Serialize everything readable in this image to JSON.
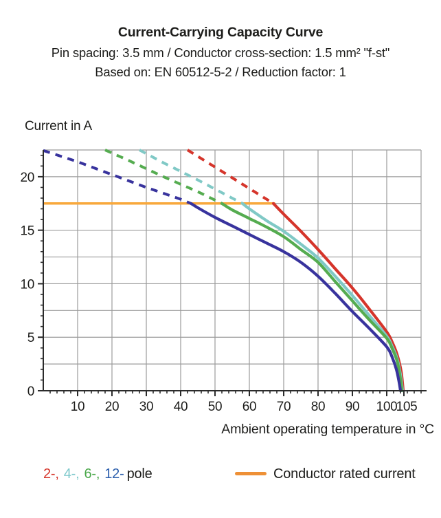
{
  "header": {
    "title": "Current-Carrying Capacity Curve",
    "subtitle_spacing": "Pin spacing: 3.5 mm / Conductor cross-section: 1.5 mm² \"f-st\"",
    "subtitle_standard": "Based on: EN 60512-5-2 / Reduction factor: 1"
  },
  "chart_data": {
    "type": "line",
    "title": "Current-Carrying Capacity Curve",
    "subtitle": "Pin spacing: 3.5 mm / Conductor cross-section: 1.5 mm² \"f-st\" / Based on: EN 60512-5-2 / Reduction factor: 1",
    "ylabel": "Current in A",
    "xlabel": "Ambient operating temperature in °C",
    "xlim": [
      0,
      110
    ],
    "ylim": [
      0,
      22.5
    ],
    "x_major_ticks": [
      10,
      20,
      30,
      40,
      50,
      60,
      70,
      80,
      90,
      100,
      105
    ],
    "x_minor_step": 2,
    "y_major_ticks": [
      0,
      5,
      10,
      15,
      20
    ],
    "y_minor_step": 1,
    "x_gridlines": [
      10,
      20,
      30,
      40,
      50,
      60,
      70,
      80,
      90,
      100,
      110
    ],
    "y_gridlines": [
      2.5,
      5,
      7.5,
      10,
      12.5,
      15,
      17.5,
      20,
      22.5
    ],
    "grid_on": true,
    "grid_color": "#9b9b9b",
    "axis_color": "#2b2b2b",
    "text_color": "#1d1d1b",
    "rated_current": {
      "label": "Conductor rated current",
      "value": 17.5,
      "x_start": 0,
      "x_end": 67.5,
      "color": "#f8a83c"
    },
    "series": [
      {
        "name": "2-pole",
        "color": "#d5352b",
        "dashed_above_rated": [
          [
            42,
            22.5
          ],
          [
            50,
            20.9
          ],
          [
            60,
            18.9
          ],
          [
            67,
            17.5
          ]
        ],
        "solid": [
          [
            67,
            17.5
          ],
          [
            70,
            16.5
          ],
          [
            75,
            14.9
          ],
          [
            80,
            13.2
          ],
          [
            85,
            11.4
          ],
          [
            90,
            9.6
          ],
          [
            95,
            7.6
          ],
          [
            100,
            5.5
          ],
          [
            101.5,
            4.6
          ],
          [
            103,
            3.4
          ],
          [
            104.2,
            1.8
          ],
          [
            104.8,
            0
          ]
        ]
      },
      {
        "name": "4-pole",
        "color": "#80c9c6",
        "dashed_above_rated": [
          [
            28,
            22.5
          ],
          [
            35,
            21.3
          ],
          [
            45,
            19.7
          ],
          [
            55,
            18.0
          ],
          [
            58,
            17.5
          ]
        ],
        "solid": [
          [
            58,
            17.5
          ],
          [
            60,
            17.0
          ],
          [
            65,
            15.9
          ],
          [
            70,
            14.9
          ],
          [
            75,
            13.7
          ],
          [
            80,
            12.4
          ],
          [
            85,
            10.7
          ],
          [
            90,
            8.9
          ],
          [
            95,
            7.0
          ],
          [
            100,
            5.1
          ],
          [
            101.5,
            4.2
          ],
          [
            103,
            3.0
          ],
          [
            104,
            1.5
          ],
          [
            104.6,
            0
          ]
        ]
      },
      {
        "name": "6-pole",
        "color": "#55ac50",
        "dashed_above_rated": [
          [
            18,
            22.5
          ],
          [
            25,
            21.5
          ],
          [
            35,
            20.0
          ],
          [
            45,
            18.6
          ],
          [
            52,
            17.5
          ]
        ],
        "solid": [
          [
            52,
            17.5
          ],
          [
            55,
            16.9
          ],
          [
            60,
            16.1
          ],
          [
            65,
            15.3
          ],
          [
            70,
            14.4
          ],
          [
            75,
            13.2
          ],
          [
            80,
            12.0
          ],
          [
            85,
            10.2
          ],
          [
            90,
            8.4
          ],
          [
            95,
            6.6
          ],
          [
            100,
            4.9
          ],
          [
            101.5,
            4.0
          ],
          [
            103,
            2.8
          ],
          [
            103.9,
            1.3
          ],
          [
            104.4,
            0
          ]
        ]
      },
      {
        "name": "12-pole",
        "color": "#38339d",
        "dashed_above_rated": [
          [
            0,
            22.45
          ],
          [
            10,
            21.4
          ],
          [
            20,
            20.2
          ],
          [
            30,
            19.0
          ],
          [
            40,
            17.9
          ],
          [
            43,
            17.5
          ]
        ],
        "solid": [
          [
            43,
            17.5
          ],
          [
            45,
            17.1
          ],
          [
            50,
            16.2
          ],
          [
            55,
            15.4
          ],
          [
            60,
            14.6
          ],
          [
            65,
            13.8
          ],
          [
            70,
            13.0
          ],
          [
            75,
            12.0
          ],
          [
            80,
            10.7
          ],
          [
            85,
            9.1
          ],
          [
            90,
            7.4
          ],
          [
            95,
            5.8
          ],
          [
            100,
            4.1
          ],
          [
            101.5,
            3.2
          ],
          [
            102.8,
            2.0
          ],
          [
            103.6,
            0.8
          ],
          [
            104,
            0
          ]
        ]
      }
    ],
    "legend_position": "bottom"
  },
  "legend": {
    "poles": [
      {
        "label": "2-,",
        "color": "#d5352b"
      },
      {
        "label": "4-,",
        "color": "#7ec9cc"
      },
      {
        "label": "6-,",
        "color": "#4ba84b"
      },
      {
        "label": "12-",
        "color": "#2c5fad"
      }
    ],
    "pole_suffix": "pole",
    "rated": {
      "label": "Conductor rated current",
      "swatch_color": "#ee9036"
    }
  }
}
